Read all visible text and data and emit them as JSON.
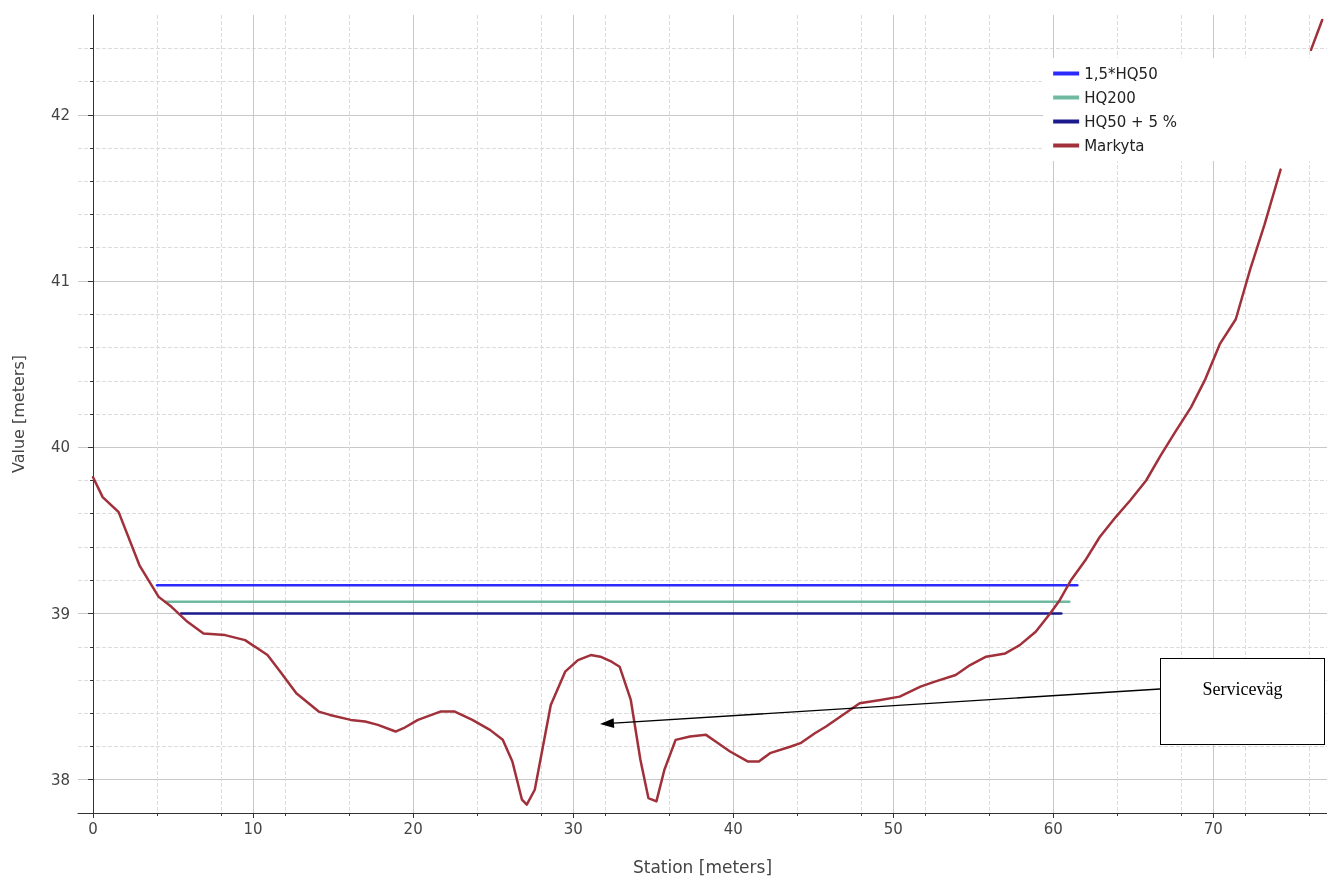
{
  "chart_data": {
    "type": "line",
    "xlabel": "Station [meters]",
    "ylabel": "Value [meters]",
    "xlim": [
      -0.94,
      77.1
    ],
    "ylim": [
      37.8,
      42.6
    ],
    "xticks": [
      0,
      10,
      20,
      30,
      40,
      50,
      60,
      70
    ],
    "yticks": [
      38,
      39,
      40,
      41,
      42
    ],
    "grid": true,
    "legend": "top right",
    "marker": "none",
    "line_style": "solid",
    "annotations": [
      "Serviceväg"
    ],
    "series": [
      {
        "name": "1,5*HQ50",
        "color": "#2b2bff",
        "x": [
          4.0,
          61.5
        ],
        "values": [
          39.17,
          39.17
        ]
      },
      {
        "name": "HQ200",
        "color": "#6fb9a0",
        "x": [
          4.5,
          61.0
        ],
        "values": [
          39.07,
          39.07
        ]
      },
      {
        "name": "HQ50 + 5 %",
        "color": "#1a1a8c",
        "x": [
          5.5,
          60.5
        ],
        "values": [
          39.0,
          39.0
        ]
      },
      {
        "name": "Markyta",
        "color": "#a0303a",
        "x": [
          0,
          0.6,
          1.6,
          2.9,
          4.1,
          4.9,
          5.9,
          6.9,
          8.25,
          9.5,
          10.9,
          11.7,
          12.7,
          14.1,
          14.8,
          16.1,
          17,
          17.8,
          18.9,
          19.4,
          20.3,
          21.7,
          22.6,
          23.7,
          24.8,
          25.6,
          26.2,
          26.8,
          27.1,
          27.6,
          28.6,
          29.5,
          30.3,
          31.1,
          31.7,
          32.4,
          32.9,
          33.6,
          34.2,
          34.7,
          35.2,
          35.7,
          36.4,
          37.3,
          38.3,
          38.9,
          39.8,
          40.9,
          41.6,
          42.3,
          43.6,
          44.2,
          45.1,
          45.8,
          47,
          47.9,
          49.2,
          50.4,
          51.7,
          52.6,
          53.9,
          54.8,
          55.8,
          57,
          57.9,
          58.9,
          59.8,
          60.4,
          61.1,
          62,
          62.9,
          63.9,
          64.8,
          65.8,
          66.7,
          67.6,
          68.6,
          69.5,
          70.4,
          71.4,
          72.3,
          73.2,
          74.2,
          75.1,
          76.1,
          76.8
        ],
        "values": [
          39.82,
          39.7,
          39.61,
          39.29,
          39.1,
          39.04,
          38.95,
          38.88,
          38.87,
          38.84,
          38.75,
          38.65,
          38.52,
          38.41,
          38.39,
          38.36,
          38.35,
          38.33,
          38.29,
          38.31,
          38.36,
          38.41,
          38.41,
          38.36,
          38.3,
          38.24,
          38.11,
          37.88,
          37.85,
          37.94,
          38.45,
          38.65,
          38.72,
          38.75,
          38.74,
          38.71,
          38.68,
          38.48,
          38.12,
          37.89,
          37.87,
          38.06,
          38.24,
          38.26,
          38.27,
          38.23,
          38.17,
          38.11,
          38.11,
          38.16,
          38.2,
          38.22,
          38.28,
          38.32,
          38.4,
          38.46,
          38.48,
          38.5,
          38.56,
          38.59,
          38.63,
          38.69,
          38.74,
          38.76,
          38.81,
          38.89,
          39.0,
          39.08,
          39.2,
          39.32,
          39.46,
          39.58,
          39.68,
          39.8,
          39.95,
          40.09,
          40.24,
          40.41,
          40.62,
          40.77,
          41.07,
          41.34,
          41.67,
          null,
          42.39,
          42.57
        ]
      }
    ]
  }
}
